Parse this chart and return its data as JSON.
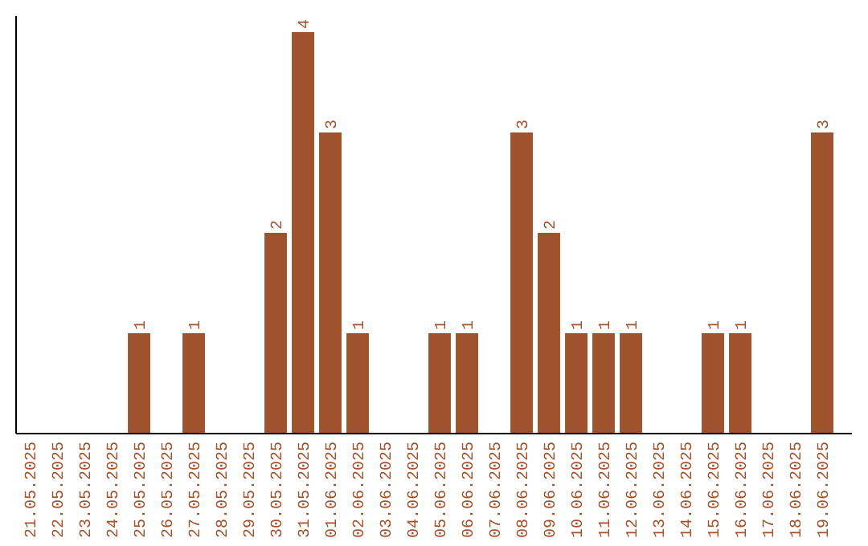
{
  "chart_data": {
    "type": "bar",
    "categories": [
      "21.05.2025",
      "22.05.2025",
      "23.05.2025",
      "24.05.2025",
      "25.05.2025",
      "26.05.2025",
      "27.05.2025",
      "28.05.2025",
      "29.05.2025",
      "30.05.2025",
      "31.05.2025",
      "01.06.2025",
      "02.06.2025",
      "03.06.2025",
      "04.06.2025",
      "05.06.2025",
      "06.06.2025",
      "07.06.2025",
      "08.06.2025",
      "09.06.2025",
      "10.06.2025",
      "11.06.2025",
      "12.06.2025",
      "13.06.2025",
      "14.06.2025",
      "15.06.2025",
      "16.06.2025",
      "17.06.2025",
      "18.06.2025",
      "19.06.2025"
    ],
    "values": [
      0,
      0,
      0,
      0,
      1,
      0,
      1,
      0,
      0,
      2,
      4,
      3,
      1,
      0,
      0,
      1,
      1,
      0,
      3,
      2,
      1,
      1,
      1,
      0,
      0,
      1,
      1,
      0,
      0,
      3
    ],
    "value_labels": [
      null,
      null,
      null,
      null,
      "1",
      null,
      "1",
      null,
      null,
      "2",
      "4",
      "3",
      "1",
      null,
      null,
      "1",
      "1",
      null,
      "3",
      "2",
      "1",
      "1",
      "1",
      null,
      null,
      "1",
      "1",
      null,
      null,
      "3"
    ],
    "color": "#a0522d"
  }
}
